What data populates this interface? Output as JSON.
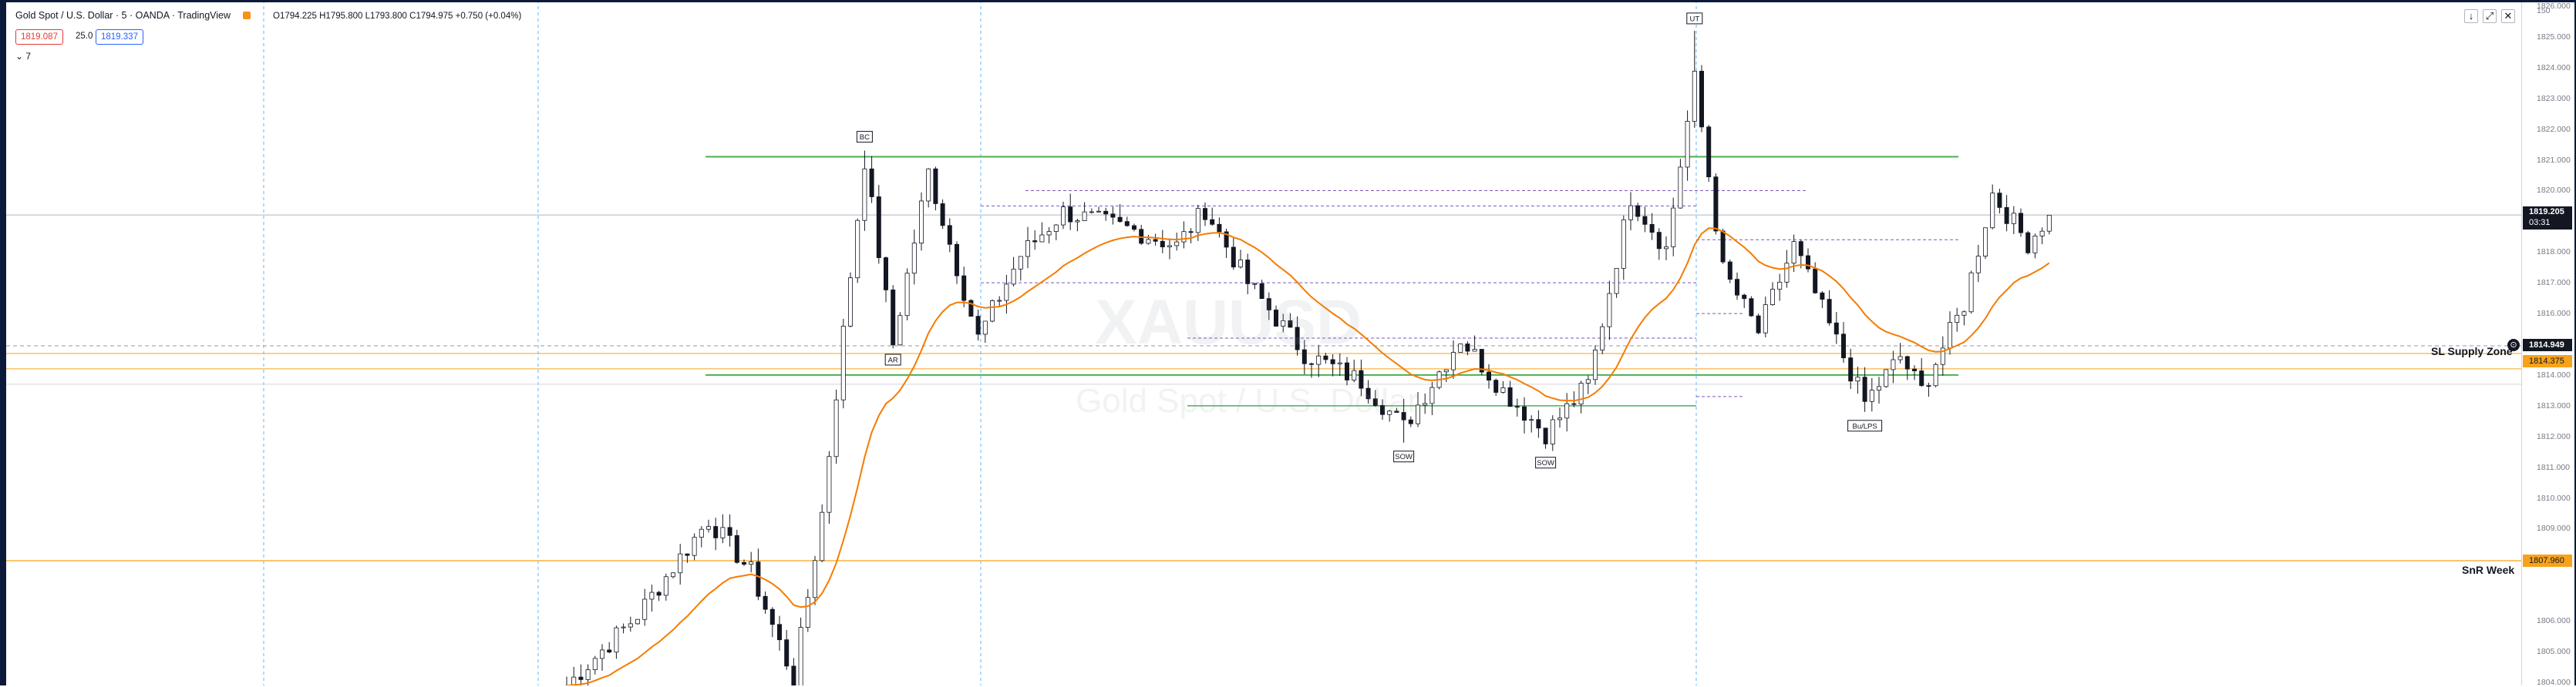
{
  "header": {
    "title": "Gold Spot / U.S. Dollar · 5 · OANDA · TradingView",
    "ohlc": "O1794.225 H1795.800 L1793.800 C1794.975 +0.750 (+0.04%)",
    "bid": "1819.087",
    "spread": "25.0",
    "ask": "1819.337",
    "indicator_toggle": "7"
  },
  "watermark": {
    "symbol": "XAUUSD",
    "name": "Gold Spot / U.S. Dollar"
  },
  "window_controls": [
    "↓",
    "⤢",
    "✕"
  ],
  "price_axis": {
    "ticks": [
      "1826.000",
      "1825.000",
      "1824.000",
      "1823.000",
      "1822.000",
      "1821.000",
      "1820.000",
      "1818.000",
      "1817.000",
      "1816.000",
      "1814.000",
      "1813.000",
      "1812.000",
      "1811.000",
      "1810.000",
      "1809.000",
      "1808.000",
      "1806.000",
      "1805.000",
      "1804.000"
    ],
    "tick_values": [
      1826,
      1825,
      1824,
      1823,
      1822,
      1821,
      1820,
      1818,
      1817,
      1816,
      1814,
      1813,
      1812,
      1811,
      1810,
      1809,
      1808,
      1806,
      1805,
      1804
    ],
    "top_label": "150",
    "current_price": "1819.205",
    "countdown": "03:31",
    "crosshair_price": "1814.949",
    "supply_price": "1814.375",
    "snr_price": "1807.960"
  },
  "zones": {
    "supply_label": "SL Supply Zone",
    "snr_label": "SnR Week"
  },
  "annotations": [
    "BC",
    "AR",
    "UT",
    "SOW",
    "SOW",
    "Bu/LPS"
  ],
  "colors": {
    "up": "#ffffff",
    "down": "#131722",
    "ema": "#f57c00",
    "green_line": "#4caf50",
    "purple_line": "#7e57c2",
    "orange_line": "#f7a21b",
    "vline": "#2196f3"
  },
  "chart_data": {
    "type": "candlestick",
    "symbol": "XAUUSD",
    "interval": "5",
    "price_range": [
      1803.9,
      1826.2
    ],
    "current_price": 1819.205,
    "levels": [
      {
        "name": "SL Supply Zone",
        "price": 1814.375
      },
      {
        "name": "SnR Week",
        "price": 1807.96
      }
    ],
    "trading_range": {
      "resistance": 1821.1,
      "support": 1814.0,
      "lower": 1813.0
    },
    "pivots": [
      {
        "i": 0,
        "p": 1803.9
      },
      {
        "i": 10,
        "p": 1806.2
      },
      {
        "i": 20,
        "p": 1809.3
      },
      {
        "i": 26,
        "p": 1807.6
      },
      {
        "i": 32,
        "p": 1804.1
      },
      {
        "i": 36,
        "p": 1809.5
      },
      {
        "i": 39,
        "p": 1815.4
      },
      {
        "i": 42,
        "p": 1821.0
      },
      {
        "i": 46,
        "p": 1815.0
      },
      {
        "i": 51,
        "p": 1820.6
      },
      {
        "i": 58,
        "p": 1815.2
      },
      {
        "i": 64,
        "p": 1817.9
      },
      {
        "i": 70,
        "p": 1819.3
      },
      {
        "i": 80,
        "p": 1818.7
      },
      {
        "i": 86,
        "p": 1818.2
      },
      {
        "i": 90,
        "p": 1819.4
      },
      {
        "i": 96,
        "p": 1817.0
      },
      {
        "i": 104,
        "p": 1814.7
      },
      {
        "i": 112,
        "p": 1813.8
      },
      {
        "i": 118,
        "p": 1812.3
      },
      {
        "i": 126,
        "p": 1815.2
      },
      {
        "i": 132,
        "p": 1813.5
      },
      {
        "i": 138,
        "p": 1812.1
      },
      {
        "i": 144,
        "p": 1813.7
      },
      {
        "i": 150,
        "p": 1819.8
      },
      {
        "i": 155,
        "p": 1818.1
      },
      {
        "i": 159,
        "p": 1823.6
      },
      {
        "i": 163,
        "p": 1817.4
      },
      {
        "i": 168,
        "p": 1815.4
      },
      {
        "i": 173,
        "p": 1818.2
      },
      {
        "i": 178,
        "p": 1815.6
      },
      {
        "i": 183,
        "p": 1813.1
      },
      {
        "i": 188,
        "p": 1814.6
      },
      {
        "i": 191,
        "p": 1813.5
      },
      {
        "i": 197,
        "p": 1816.3
      },
      {
        "i": 201,
        "p": 1819.9
      },
      {
        "i": 206,
        "p": 1818.3
      },
      {
        "i": 209,
        "p": 1819.2
      }
    ]
  }
}
